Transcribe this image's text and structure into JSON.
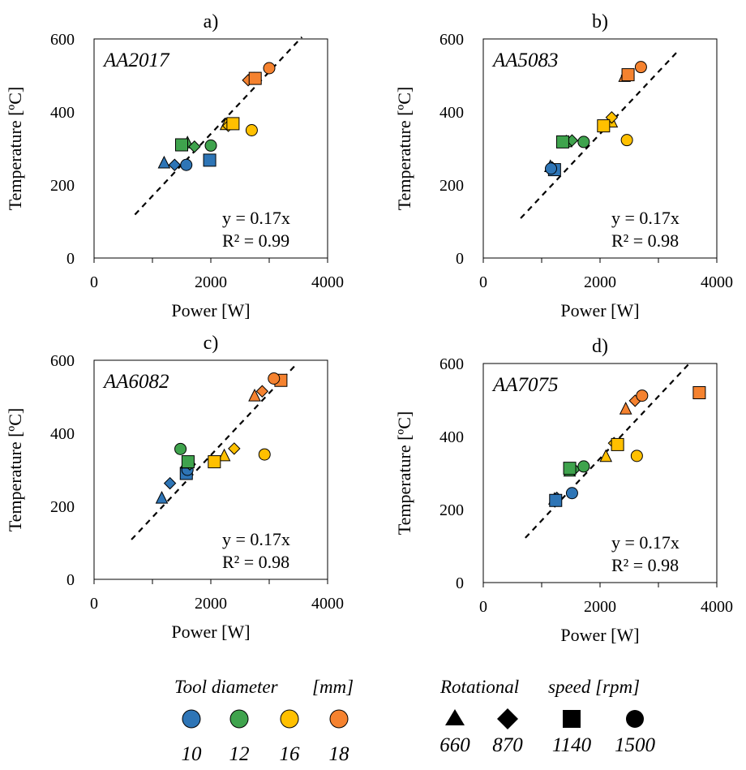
{
  "colors": {
    "10": "#2E75B6",
    "12": "#3FA34D",
    "16": "#FFC000",
    "18": "#F5822F"
  },
  "chart_data": [
    {
      "type": "scatter",
      "panel_label": "a)",
      "alloy": "AA2017",
      "xlabel": "Power [W]",
      "ylabel": "Temperature [ºC]",
      "xlim": [
        0,
        4000
      ],
      "ylim": [
        0,
        600
      ],
      "xticks": [
        "0",
        "2000",
        "4000"
      ],
      "yticks": [
        "0",
        "200",
        "400",
        "600"
      ],
      "fit": {
        "slope": 0.17,
        "x_range": [
          700,
          3560
        ],
        "equation": "y = 0.17x",
        "r2": "R² = 0.99"
      },
      "points": [
        {
          "x": 1200,
          "y": 260,
          "d": "10",
          "s": "triangle"
        },
        {
          "x": 1380,
          "y": 255,
          "d": "10",
          "s": "diamond"
        },
        {
          "x": 1980,
          "y": 268,
          "d": "10",
          "s": "square"
        },
        {
          "x": 1580,
          "y": 255,
          "d": "10",
          "s": "circle"
        },
        {
          "x": 1600,
          "y": 315,
          "d": "12",
          "s": "triangle"
        },
        {
          "x": 1720,
          "y": 305,
          "d": "12",
          "s": "diamond"
        },
        {
          "x": 1500,
          "y": 310,
          "d": "12",
          "s": "square"
        },
        {
          "x": 2000,
          "y": 308,
          "d": "12",
          "s": "circle"
        },
        {
          "x": 2260,
          "y": 365,
          "d": "16",
          "s": "triangle"
        },
        {
          "x": 2300,
          "y": 362,
          "d": "16",
          "s": "diamond"
        },
        {
          "x": 2380,
          "y": 368,
          "d": "16",
          "s": "square"
        },
        {
          "x": 2700,
          "y": 350,
          "d": "16",
          "s": "circle"
        },
        {
          "x": 2740,
          "y": 490,
          "d": "18",
          "s": "triangle"
        },
        {
          "x": 2640,
          "y": 487,
          "d": "18",
          "s": "diamond"
        },
        {
          "x": 2760,
          "y": 492,
          "d": "18",
          "s": "square"
        },
        {
          "x": 3000,
          "y": 520,
          "d": "18",
          "s": "circle"
        }
      ]
    },
    {
      "type": "scatter",
      "panel_label": "b)",
      "alloy": "AA5083",
      "xlabel": "Power [W]",
      "ylabel": "Temperature [ºC]",
      "xlim": [
        0,
        4000
      ],
      "ylim": [
        0,
        600
      ],
      "xticks": [
        "0",
        "2000",
        "4000"
      ],
      "yticks": [
        "0",
        "200",
        "400",
        "600"
      ],
      "fit": {
        "slope": 0.17,
        "x_range": [
          640,
          3360
        ],
        "equation": "y = 0.17x",
        "r2": "R² = 0.98"
      },
      "points": [
        {
          "x": 1150,
          "y": 250,
          "d": "10",
          "s": "triangle"
        },
        {
          "x": 1180,
          "y": 248,
          "d": "10",
          "s": "diamond"
        },
        {
          "x": 1220,
          "y": 242,
          "d": "10",
          "s": "square"
        },
        {
          "x": 1160,
          "y": 245,
          "d": "10",
          "s": "circle"
        },
        {
          "x": 1420,
          "y": 318,
          "d": "12",
          "s": "triangle"
        },
        {
          "x": 1520,
          "y": 322,
          "d": "12",
          "s": "diamond"
        },
        {
          "x": 1360,
          "y": 318,
          "d": "12",
          "s": "square"
        },
        {
          "x": 1720,
          "y": 318,
          "d": "12",
          "s": "circle"
        },
        {
          "x": 2200,
          "y": 372,
          "d": "16",
          "s": "triangle"
        },
        {
          "x": 2200,
          "y": 385,
          "d": "16",
          "s": "diamond"
        },
        {
          "x": 2060,
          "y": 362,
          "d": "16",
          "s": "square"
        },
        {
          "x": 2460,
          "y": 323,
          "d": "16",
          "s": "circle"
        },
        {
          "x": 2420,
          "y": 497,
          "d": "18",
          "s": "triangle"
        },
        {
          "x": 2460,
          "y": 500,
          "d": "18",
          "s": "diamond"
        },
        {
          "x": 2480,
          "y": 502,
          "d": "18",
          "s": "square"
        },
        {
          "x": 2700,
          "y": 523,
          "d": "18",
          "s": "circle"
        }
      ]
    },
    {
      "type": "scatter",
      "panel_label": "c)",
      "alloy": "AA6082",
      "xlabel": "Power [W]",
      "ylabel": "Temperature [ºC]",
      "xlim": [
        0,
        4000
      ],
      "ylim": [
        0,
        600
      ],
      "xticks": [
        "0",
        "2000",
        "4000"
      ],
      "yticks": [
        "0",
        "200",
        "400",
        "600"
      ],
      "fit": {
        "slope": 0.17,
        "x_range": [
          640,
          3470
        ],
        "equation": "y = 0.17x",
        "r2": "R² = 0.98"
      },
      "points": [
        {
          "x": 1160,
          "y": 222,
          "d": "10",
          "s": "triangle"
        },
        {
          "x": 1300,
          "y": 263,
          "d": "10",
          "s": "diamond"
        },
        {
          "x": 1580,
          "y": 290,
          "d": "10",
          "s": "square"
        },
        {
          "x": 1600,
          "y": 300,
          "d": "10",
          "s": "circle"
        },
        {
          "x": 1580,
          "y": 318,
          "d": "12",
          "s": "triangle"
        },
        {
          "x": 1640,
          "y": 315,
          "d": "12",
          "s": "diamond"
        },
        {
          "x": 1610,
          "y": 322,
          "d": "12",
          "s": "square"
        },
        {
          "x": 1480,
          "y": 357,
          "d": "12",
          "s": "circle"
        },
        {
          "x": 2230,
          "y": 338,
          "d": "16",
          "s": "triangle"
        },
        {
          "x": 2400,
          "y": 358,
          "d": "16",
          "s": "diamond"
        },
        {
          "x": 2060,
          "y": 322,
          "d": "16",
          "s": "square"
        },
        {
          "x": 2920,
          "y": 342,
          "d": "16",
          "s": "circle"
        },
        {
          "x": 2750,
          "y": 502,
          "d": "18",
          "s": "triangle"
        },
        {
          "x": 2880,
          "y": 515,
          "d": "18",
          "s": "diamond"
        },
        {
          "x": 3200,
          "y": 545,
          "d": "18",
          "s": "square"
        },
        {
          "x": 3080,
          "y": 550,
          "d": "18",
          "s": "circle"
        }
      ]
    },
    {
      "type": "scatter",
      "panel_label": "d)",
      "alloy": "AA7075",
      "xlabel": "Power [W]",
      "ylabel": "Temperature [ºC]",
      "xlim": [
        0,
        4000
      ],
      "ylim": [
        0,
        600
      ],
      "xticks": [
        "0",
        "2000",
        "4000"
      ],
      "yticks": [
        "0",
        "200",
        "400",
        "600"
      ],
      "fit": {
        "slope": 0.17,
        "x_range": [
          720,
          3530
        ],
        "equation": "y = 0.17x",
        "r2": "R² = 0.98"
      },
      "points": [
        {
          "x": 1220,
          "y": 228,
          "d": "10",
          "s": "triangle"
        },
        {
          "x": 1260,
          "y": 232,
          "d": "10",
          "s": "diamond"
        },
        {
          "x": 1240,
          "y": 225,
          "d": "10",
          "s": "square"
        },
        {
          "x": 1520,
          "y": 245,
          "d": "10",
          "s": "circle"
        },
        {
          "x": 1480,
          "y": 305,
          "d": "12",
          "s": "triangle"
        },
        {
          "x": 1560,
          "y": 310,
          "d": "12",
          "s": "diamond"
        },
        {
          "x": 1480,
          "y": 313,
          "d": "12",
          "s": "square"
        },
        {
          "x": 1720,
          "y": 318,
          "d": "12",
          "s": "circle"
        },
        {
          "x": 2100,
          "y": 345,
          "d": "16",
          "s": "triangle"
        },
        {
          "x": 2240,
          "y": 382,
          "d": "16",
          "s": "diamond"
        },
        {
          "x": 2300,
          "y": 378,
          "d": "16",
          "s": "square"
        },
        {
          "x": 2630,
          "y": 347,
          "d": "16",
          "s": "circle"
        },
        {
          "x": 2440,
          "y": 475,
          "d": "18",
          "s": "triangle"
        },
        {
          "x": 2600,
          "y": 498,
          "d": "18",
          "s": "diamond"
        },
        {
          "x": 3700,
          "y": 520,
          "d": "18",
          "s": "square"
        },
        {
          "x": 2720,
          "y": 512,
          "d": "18",
          "s": "circle"
        }
      ]
    }
  ],
  "legend": {
    "diameter_title_a": "Tool diameter",
    "diameter_title_b": "[mm]",
    "diameters": [
      "10",
      "12",
      "16",
      "18"
    ],
    "speed_title_a": "Rotational",
    "speed_title_b": "speed [rpm]",
    "speeds": [
      {
        "label": "660",
        "shape": "triangle-icon"
      },
      {
        "label": "870",
        "shape": "diamond-icon"
      },
      {
        "label": "1140",
        "shape": "square-icon"
      },
      {
        "label": "1500",
        "shape": "circle-icon"
      }
    ]
  }
}
